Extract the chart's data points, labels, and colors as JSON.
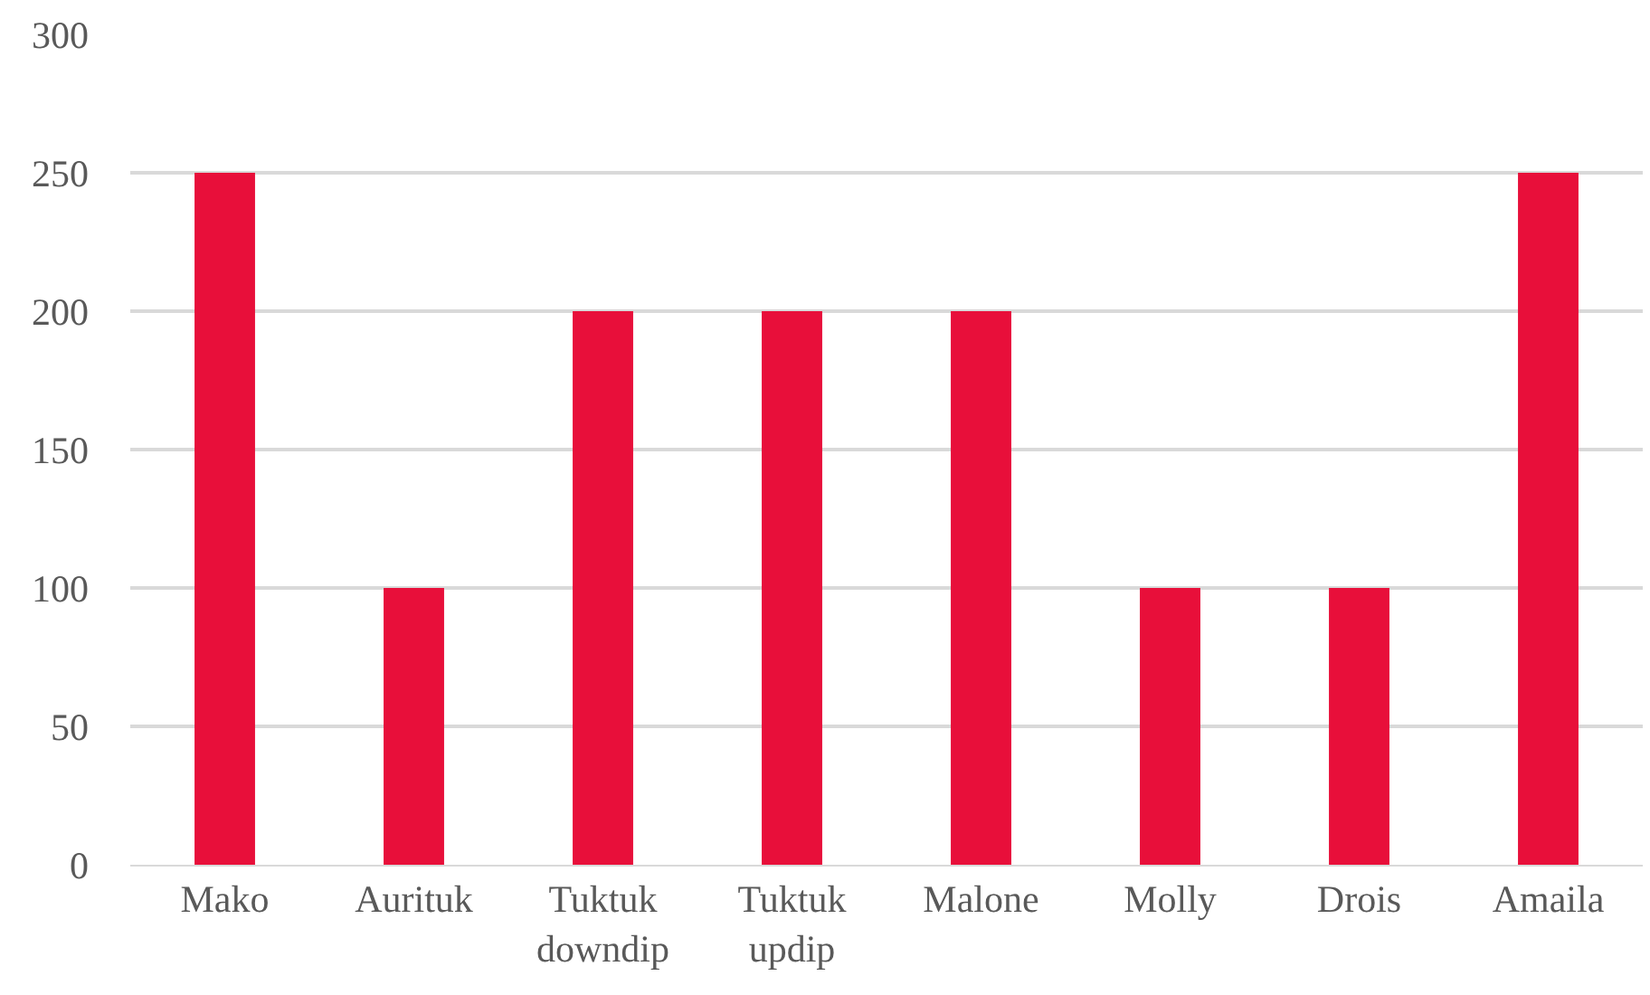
{
  "chart_data": {
    "type": "bar",
    "categories": [
      "Mako",
      "Aurituk",
      "Tuktuk downdip",
      "Tuktuk updip",
      "Malone",
      "Molly",
      "Drois",
      "Amaila"
    ],
    "values": [
      250,
      100,
      200,
      200,
      200,
      100,
      100,
      250
    ],
    "color": "#e80f3a",
    "ylim": [
      0,
      300
    ],
    "yticks": [
      0,
      50,
      100,
      150,
      200,
      250,
      300
    ],
    "grid": "y",
    "legend": false
  }
}
